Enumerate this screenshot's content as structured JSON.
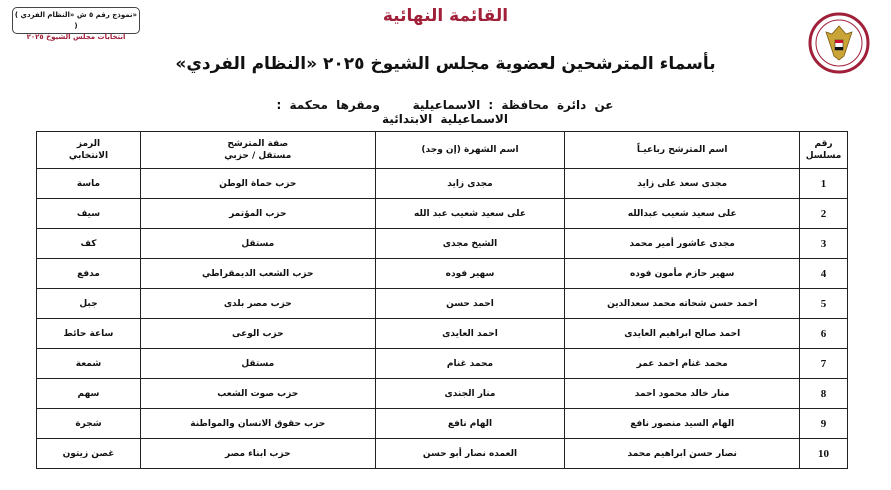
{
  "badge": {
    "line1": "( نموذج رقم ٥ ش «النظام الفردي» )",
    "line2": "انتخابات مجلس الشيوخ ٢٠٢٥"
  },
  "final_title": "القائمة النهائية",
  "main_title": "بأسماء المترشحين لعضوية مجلس الشيوخ ٢٠٢٥ «النظام الفردي»",
  "district": {
    "label": "عن دائرة محافظة :",
    "governorate": "الاسماعيلية",
    "court_label": "ومقرها محكمة :",
    "court": "الاسماعيلية الابتدائية"
  },
  "colors": {
    "title": "#a0203a"
  },
  "table": {
    "headers": {
      "serial_1": "رقم",
      "serial_2": "مسلسل",
      "name": "اسم المترشح رباعيـاً",
      "fame": "اسم الشهرة (إن وجد)",
      "type_1": "صفة المترشح",
      "type_2": "مستقل / حزبي",
      "symbol_1": "الرمز",
      "symbol_2": "الانتخابي"
    },
    "rows": [
      {
        "n": "1",
        "name": "مجدى سعد على زايد",
        "fame": "مجدى زايد",
        "type": "حزب حماة الوطن",
        "symbol": "ماسة"
      },
      {
        "n": "2",
        "name": "على سعيد شعيب عبدالله",
        "fame": "على سعيد شعيب عبد الله",
        "type": "حزب المؤتمر",
        "symbol": "سيف"
      },
      {
        "n": "3",
        "name": "مجدى عاشور أمير محمد",
        "fame": "الشيخ مجدى",
        "type": "مستقل",
        "symbol": "كف"
      },
      {
        "n": "4",
        "name": "سهير حازم مأمون فوده",
        "fame": "سهير فوده",
        "type": "حزب الشعب الديمقراطي",
        "symbol": "مدفع"
      },
      {
        "n": "5",
        "name": "احمد حسن شحاته محمد سعدالدين",
        "fame": "احمد حسن",
        "type": "حزب مصر بلدى",
        "symbol": "جبل"
      },
      {
        "n": "6",
        "name": "احمد صالح ابراهيم العايدى",
        "fame": "احمد العايدى",
        "type": "حزب الوعى",
        "symbol": "ساعة حائط"
      },
      {
        "n": "7",
        "name": "محمد غنام احمد عمر",
        "fame": "محمد غنام",
        "type": "مستقل",
        "symbol": "شمعة"
      },
      {
        "n": "8",
        "name": "منار خالد محمود احمد",
        "fame": "منار الجندى",
        "type": "حزب صوت الشعب",
        "symbol": "سهم"
      },
      {
        "n": "9",
        "name": "الهام السيد منصور نافع",
        "fame": "الهام نافع",
        "type": "حزب حقوق الانسان والمواطنة",
        "symbol": "شجرة"
      },
      {
        "n": "10",
        "name": "نصار حسن ابراهيم محمد",
        "fame": "العمده نصار أبو حسن",
        "type": "حزب ابناء مصر",
        "symbol": "غصن زيتون"
      }
    ]
  }
}
